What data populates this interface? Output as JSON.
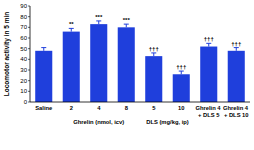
{
  "chart_data": {
    "type": "bar",
    "y_label": "Locomotor activity in 5 min",
    "categories": [
      "Saline",
      "2",
      "4",
      "8",
      "5",
      "10",
      "Ghrelin 4 + DLS 5",
      "Ghrelin 4 + DLS 10"
    ],
    "values": [
      48,
      66,
      73,
      70,
      43,
      26,
      52,
      48
    ],
    "errors": [
      3,
      3,
      3,
      3,
      3,
      3,
      3,
      3
    ],
    "annotations": [
      null,
      "**",
      "***",
      "***",
      "†††",
      "†††",
      "†††",
      "†††"
    ],
    "group_labels": [
      {
        "label": "Ghrelin (nmol, icv)",
        "categories": [
          "2",
          "4",
          "8"
        ]
      },
      {
        "label": "DLS (mg/kg, ip)",
        "categories": [
          "5",
          "10"
        ]
      }
    ],
    "color": "#1f3fdc",
    "ylim": [
      0,
      90
    ],
    "yticks": [
      0,
      10,
      20,
      30,
      40,
      50,
      60,
      70,
      80,
      90
    ],
    "grid": false
  }
}
